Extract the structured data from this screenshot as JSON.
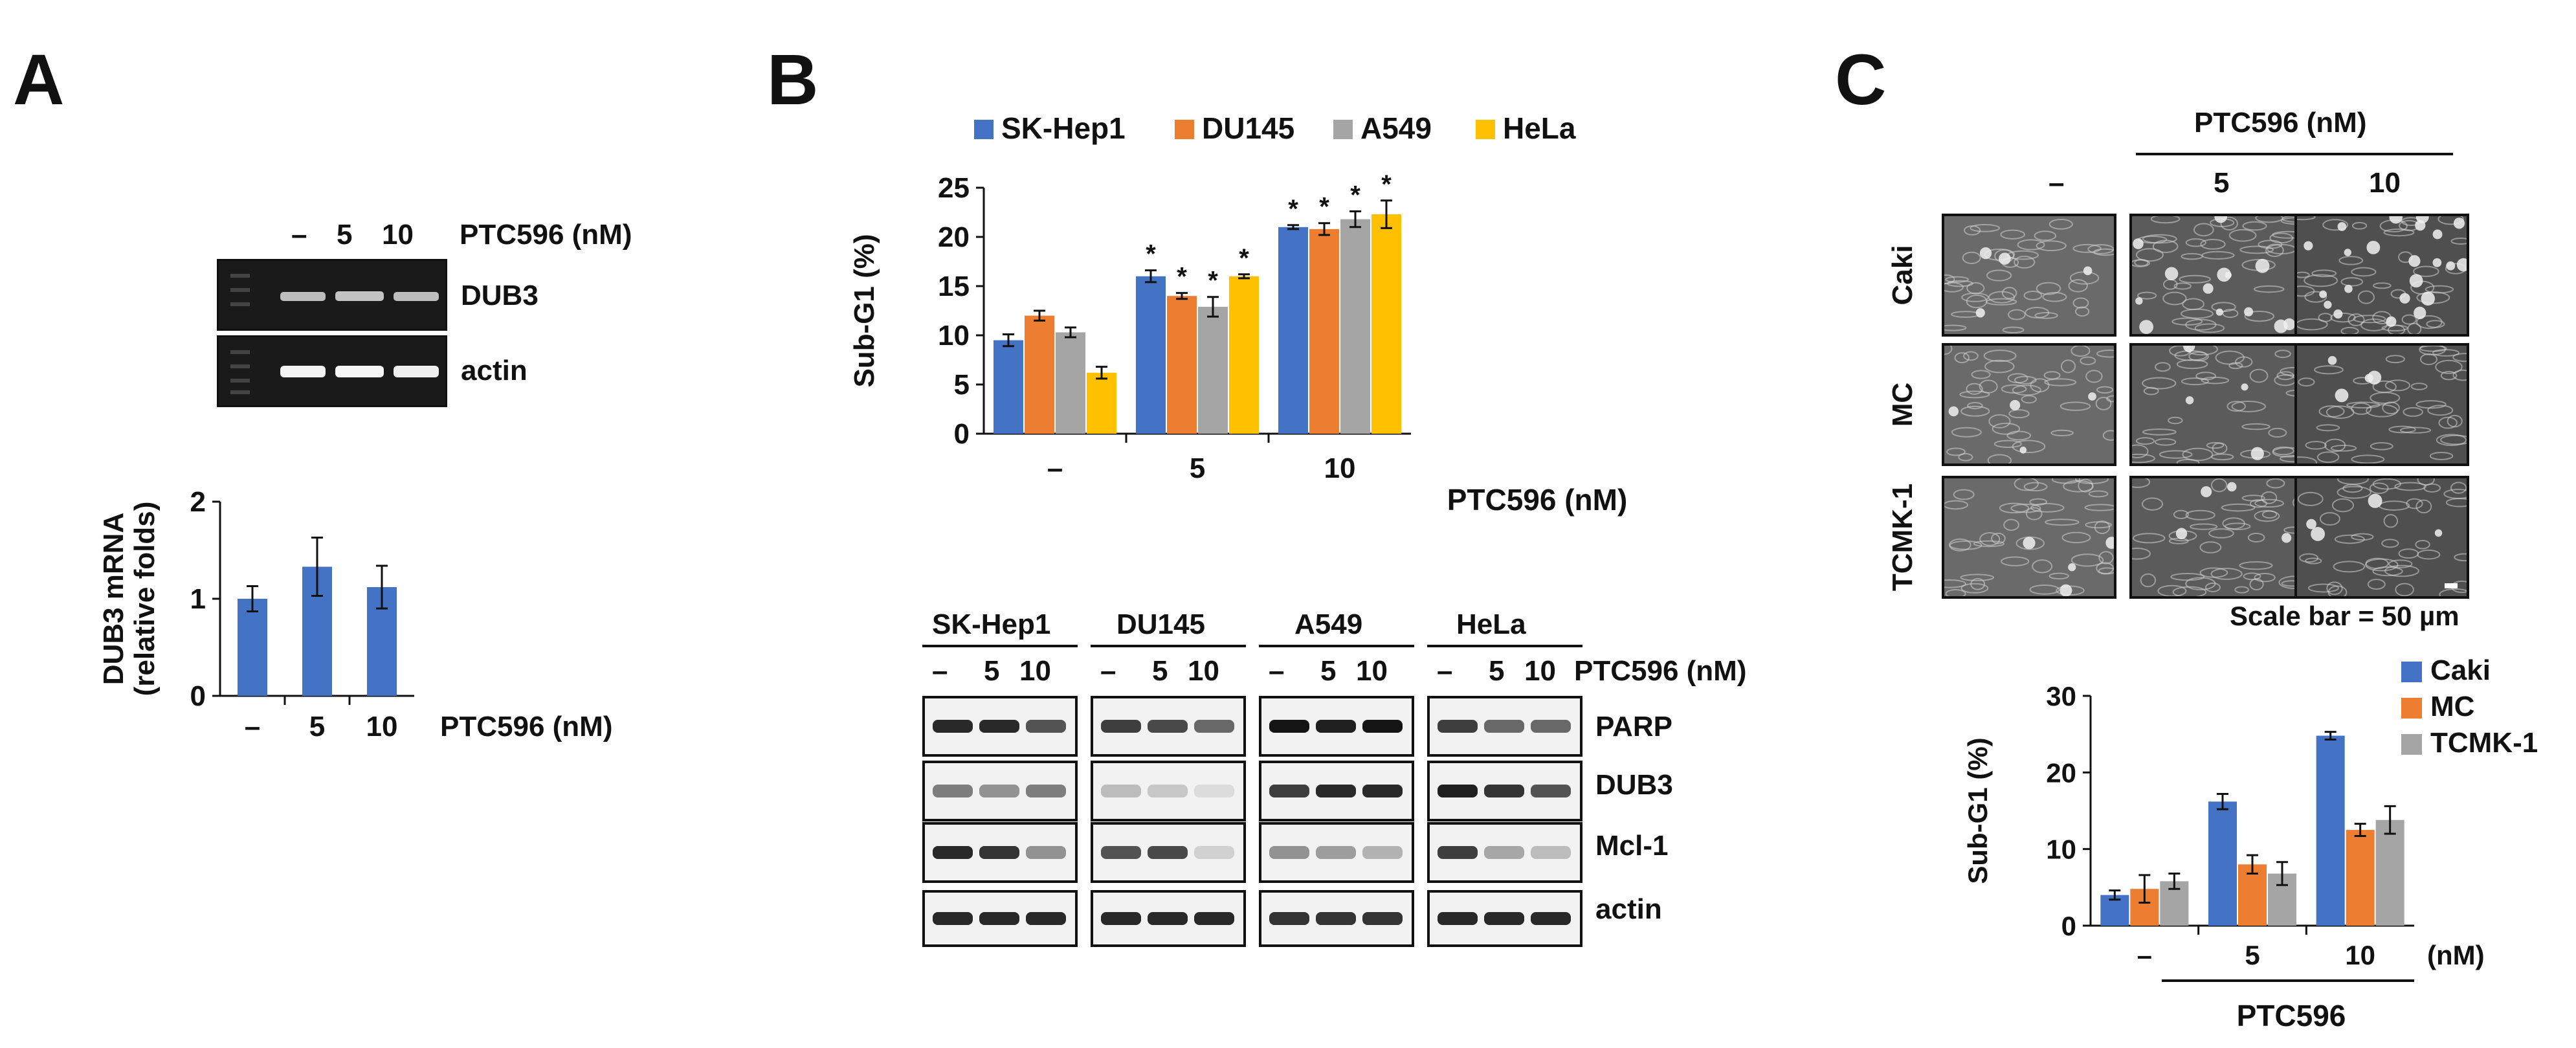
{
  "panels": {
    "a": "A",
    "b": "B",
    "c": "C"
  },
  "dose_labels": [
    "–",
    "5",
    "10"
  ],
  "treatment_label": "PTC596 (nM)",
  "panel_a": {
    "gel_bands": [
      "DUB3",
      "actin"
    ]
  },
  "panel_b": {
    "blot": {
      "cell_lines": [
        "SK-Hep1",
        "DU145",
        "A549",
        "HeLa"
      ],
      "proteins": [
        "PARP",
        "DUB3",
        "Mcl-1",
        "actin"
      ]
    }
  },
  "panel_c": {
    "column_group_label": "PTC596 (nM)",
    "row_labels": [
      "Caki",
      "MC",
      "TCMK-1"
    ],
    "scale_bar": "Scale bar = 50 µm"
  },
  "colors": {
    "blue": "#4472C4",
    "orange": "#ED7D31",
    "gray": "#A5A5A5",
    "yellow": "#FFC000"
  },
  "chart_data": [
    {
      "type": "bar",
      "panel": "A",
      "categories": [
        "–",
        "5",
        "10"
      ],
      "values": [
        1.0,
        1.33,
        1.12
      ],
      "errors": [
        0.13,
        0.3,
        0.22
      ],
      "ylabel": "DUB3 mRNA (relative folds)",
      "ylabel_lines": [
        "DUB3 mRNA",
        "(relative folds)"
      ],
      "xlabel": "PTC596 (nM)",
      "ylim": [
        0,
        2
      ],
      "yticks": [
        "0",
        "1",
        "2"
      ]
    },
    {
      "type": "bar",
      "panel": "B",
      "categories": [
        "–",
        "5",
        "10"
      ],
      "series": [
        {
          "name": "SK-Hep1",
          "color": "#4472C4",
          "values": [
            9.5,
            16.0,
            21.0
          ],
          "errors": [
            0.6,
            0.6,
            0.2
          ],
          "significant": [
            false,
            true,
            true
          ]
        },
        {
          "name": "DU145",
          "color": "#ED7D31",
          "values": [
            12.0,
            14.0,
            20.8
          ],
          "errors": [
            0.5,
            0.3,
            0.6
          ],
          "significant": [
            false,
            true,
            true
          ]
        },
        {
          "name": "A549",
          "color": "#A5A5A5",
          "values": [
            10.3,
            12.9,
            21.8
          ],
          "errors": [
            0.5,
            1.0,
            0.8
          ],
          "significant": [
            false,
            true,
            true
          ]
        },
        {
          "name": "HeLa",
          "color": "#FFC000",
          "values": [
            6.2,
            16.0,
            22.3
          ],
          "errors": [
            0.6,
            0.2,
            1.4
          ],
          "significant": [
            false,
            true,
            true
          ]
        }
      ],
      "significance_mark": "*",
      "ylabel": "Sub-G1 (%)",
      "xlabel": "PTC596 (nM)",
      "ylim": [
        0,
        25
      ],
      "yticks": [
        "0",
        "5",
        "10",
        "15",
        "20",
        "25"
      ],
      "legend": "top"
    },
    {
      "type": "bar",
      "panel": "C",
      "categories": [
        "–",
        "5",
        "10"
      ],
      "series": [
        {
          "name": "Caki",
          "color": "#4472C4",
          "values": [
            4.0,
            16.2,
            24.8
          ],
          "errors": [
            0.6,
            1.0,
            0.5
          ]
        },
        {
          "name": "MC",
          "color": "#ED7D31",
          "values": [
            4.8,
            8.0,
            12.5
          ],
          "errors": [
            1.8,
            1.2,
            0.8
          ]
        },
        {
          "name": "TCMK-1",
          "color": "#A5A5A5",
          "values": [
            5.8,
            6.8,
            13.8
          ],
          "errors": [
            1.0,
            1.5,
            1.8
          ]
        }
      ],
      "ylabel": "Sub-G1 (%)",
      "xunit": "(nM)",
      "xgroup_label": "PTC596",
      "ylim": [
        0,
        30
      ],
      "yticks": [
        "0",
        "10",
        "20",
        "30"
      ],
      "legend": "top-right"
    }
  ]
}
